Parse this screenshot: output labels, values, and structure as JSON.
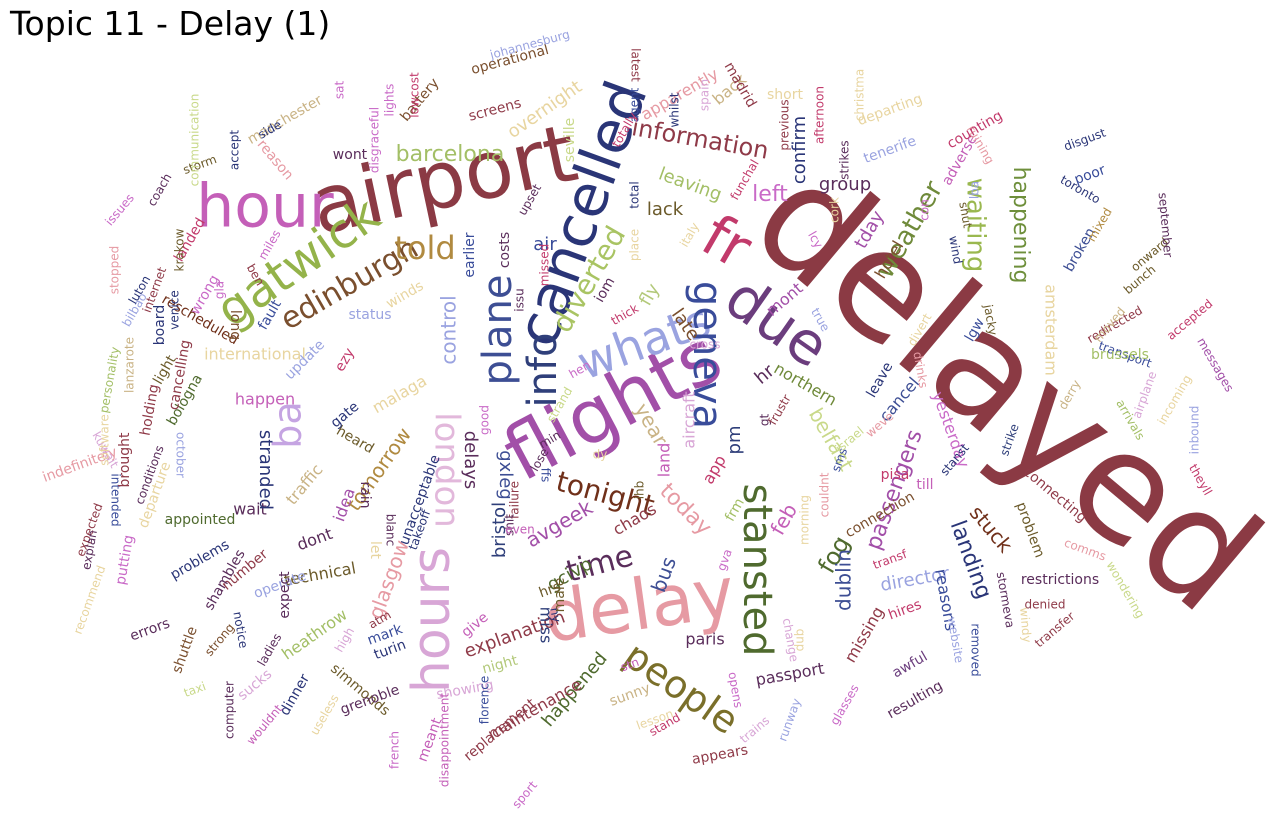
{
  "title": "Topic 11 - Delay (1)",
  "words": [
    {
      "text": "delayed",
      "color": "#8b3a44"
    },
    {
      "text": "airport",
      "color": "#8b3a44"
    },
    {
      "text": "flights",
      "color": "#a24fa8"
    },
    {
      "text": "delay",
      "color": "#e69aa3"
    },
    {
      "text": "hour",
      "color": "#c45fb8"
    },
    {
      "text": "cancelled",
      "color": "#2a3577"
    },
    {
      "text": "fr",
      "color": "#c23a6b"
    },
    {
      "text": "due",
      "color": "#6b3d7d"
    },
    {
      "text": "hours",
      "color": "#d8a6d6"
    },
    {
      "text": "gatwick",
      "color": "#94b34a"
    },
    {
      "text": "whats",
      "color": "#9aa3e0"
    },
    {
      "text": "geneva",
      "color": "#394c9a"
    },
    {
      "text": "info",
      "color": "#2f3f7a"
    },
    {
      "text": "plane",
      "color": "#3d4e94"
    },
    {
      "text": "people",
      "color": "#7a6f2a"
    },
    {
      "text": "stansted",
      "color": "#4f6a2e"
    },
    {
      "text": "ba",
      "color": "#c5a4e2"
    },
    {
      "text": "london",
      "color": "#e2b8db"
    },
    {
      "text": "edinburgh",
      "color": "#7a4f2e"
    },
    {
      "text": "told",
      "color": "#b08a40"
    },
    {
      "text": "diverted",
      "color": "#a9c463"
    },
    {
      "text": "time",
      "color": "#5a2d5b"
    },
    {
      "text": "tonight",
      "color": "#70301a"
    },
    {
      "text": "weather",
      "color": "#6f8a3a"
    },
    {
      "text": "waiting",
      "color": "#9ab84f"
    },
    {
      "text": "happening",
      "color": "#6e8f3b"
    },
    {
      "text": "information",
      "color": "#8f3a48"
    },
    {
      "text": "barcelona",
      "color": "#a3bf66"
    },
    {
      "text": "left",
      "color": "#c96ac7"
    },
    {
      "text": "fog",
      "color": "#4f6a2e"
    },
    {
      "text": "feb",
      "color": "#c45fb8"
    },
    {
      "text": "dublin",
      "color": "#3d4e94"
    },
    {
      "text": "landing",
      "color": "#2a3577"
    },
    {
      "text": "stuck",
      "color": "#70301a"
    },
    {
      "text": "passengers",
      "color": "#a24fa8"
    },
    {
      "text": "belfast",
      "color": "#c9d98a"
    },
    {
      "text": "today",
      "color": "#e69aa3"
    },
    {
      "text": "delays",
      "color": "#5a2d5b"
    },
    {
      "text": "control",
      "color": "#9aa3e0"
    },
    {
      "text": "tomorrow",
      "color": "#b08a40"
    },
    {
      "text": "glasgow",
      "color": "#e69aa3"
    },
    {
      "text": "bus",
      "color": "#3d4e94"
    },
    {
      "text": "year",
      "color": "#c9b385"
    },
    {
      "text": "air",
      "color": "#394c9a"
    },
    {
      "text": "fly",
      "color": "#b3c97a"
    },
    {
      "text": "late",
      "color": "#7a4f2e"
    },
    {
      "text": "lack",
      "color": "#6b5a2a"
    },
    {
      "text": "leaving",
      "color": "#a3bf66"
    },
    {
      "text": "overnight",
      "color": "#e8d5a0"
    },
    {
      "text": "apparently",
      "color": "#e69aa3"
    },
    {
      "text": "back",
      "color": "#c9b385"
    },
    {
      "text": "confirm",
      "color": "#2a3577"
    },
    {
      "text": "group",
      "color": "#5a2d5b"
    },
    {
      "text": "tday",
      "color": "#a24fa8"
    },
    {
      "text": "hotel",
      "color": "#7a4f2e"
    },
    {
      "text": "mont",
      "color": "#a24fa8"
    },
    {
      "text": "hr",
      "color": "#5a2d5b"
    },
    {
      "text": "pm",
      "color": "#2f3f7a"
    },
    {
      "text": "northern",
      "color": "#6f8a3a"
    },
    {
      "text": "cancel",
      "color": "#3d4e94"
    },
    {
      "text": "land",
      "color": "#c45fb8"
    },
    {
      "text": "aircraft",
      "color": "#d8a6d6"
    },
    {
      "text": "app",
      "color": "#c23a6b"
    },
    {
      "text": "avgeek",
      "color": "#a24fa8"
    },
    {
      "text": "gxleg",
      "color": "#3d4e94"
    },
    {
      "text": "bristol",
      "color": "#2f3f7a"
    },
    {
      "text": "chaos",
      "color": "#8f3a48"
    },
    {
      "text": "explanation",
      "color": "#8f3a48"
    },
    {
      "text": "gcivp",
      "color": "#4f6a2e"
    },
    {
      "text": "hrs",
      "color": "#6b5a2a"
    },
    {
      "text": "night",
      "color": "#b3c97a"
    },
    {
      "text": "miss",
      "color": "#2f3f7a"
    },
    {
      "text": "paris",
      "color": "#5a2d5b"
    },
    {
      "text": "happened",
      "color": "#4f6a2e"
    },
    {
      "text": "maintenance",
      "color": "#8f3a48"
    },
    {
      "text": "showing",
      "color": "#d8a6d6"
    },
    {
      "text": "passport",
      "color": "#5a2d5b"
    },
    {
      "text": "missing",
      "color": "#8f3a48"
    },
    {
      "text": "awful",
      "color": "#6b3d7d"
    },
    {
      "text": "director",
      "color": "#9aa3e0"
    },
    {
      "text": "reasons",
      "color": "#394c9a"
    },
    {
      "text": "heathrow",
      "color": "#a3bf66"
    },
    {
      "text": "simmonds",
      "color": "#6b5a2a"
    },
    {
      "text": "technical",
      "color": "#6b5a2a"
    },
    {
      "text": "dont",
      "color": "#5a2d5b"
    },
    {
      "text": "idea",
      "color": "#a24fa8"
    },
    {
      "text": "traffic",
      "color": "#c9b385"
    },
    {
      "text": "wait",
      "color": "#5a2d5b"
    },
    {
      "text": "stranded",
      "color": "#2a3577"
    },
    {
      "text": "happen",
      "color": "#c45fb8"
    },
    {
      "text": "international",
      "color": "#e8d5a0"
    },
    {
      "text": "update",
      "color": "#9aa3e0"
    },
    {
      "text": "malaga",
      "color": "#e8d5a0"
    },
    {
      "text": "ezy",
      "color": "#c23a6b"
    },
    {
      "text": "status",
      "color": "#9aa3e0"
    },
    {
      "text": "winds",
      "color": "#e8d5a0"
    },
    {
      "text": "fault",
      "color": "#394c9a"
    },
    {
      "text": "wrong",
      "color": "#c96ac7"
    },
    {
      "text": "rescheduled",
      "color": "#70301a"
    },
    {
      "text": "long",
      "color": "#7a4f2e"
    },
    {
      "text": "landed",
      "color": "#c23a6b"
    },
    {
      "text": "manchester",
      "color": "#c9b385"
    },
    {
      "text": "reason",
      "color": "#e69aa3"
    },
    {
      "text": "wont",
      "color": "#5a2d5b"
    },
    {
      "text": "battery",
      "color": "#7a4f2e"
    },
    {
      "text": "screens",
      "color": "#8f3a48"
    },
    {
      "text": "operational",
      "color": "#7a4f2e"
    },
    {
      "text": "johannesburg",
      "color": "#9aa3e0"
    },
    {
      "text": "disgust",
      "color": "#2a3577"
    },
    {
      "text": "toronto",
      "color": "#2a3577"
    },
    {
      "text": "poor",
      "color": "#394c9a"
    },
    {
      "text": "broken",
      "color": "#3d4e94"
    },
    {
      "text": "mixed",
      "color": "#b08a40"
    },
    {
      "text": "onward",
      "color": "#6b5a2a"
    },
    {
      "text": "september",
      "color": "#5a2d5b"
    },
    {
      "text": "bunch",
      "color": "#6b5a2a"
    },
    {
      "text": "accepted",
      "color": "#c23a6b"
    },
    {
      "text": "redirected",
      "color": "#8f3a48"
    },
    {
      "text": "transport",
      "color": "#394c9a"
    },
    {
      "text": "moved",
      "color": "#c9b385"
    },
    {
      "text": "amsterdam",
      "color": "#e8d5a0"
    },
    {
      "text": "brussels",
      "color": "#a3bf66"
    },
    {
      "text": "derry",
      "color": "#c9b385"
    },
    {
      "text": "messages",
      "color": "#a24fa8"
    },
    {
      "text": "incoming",
      "color": "#e8d5a0"
    },
    {
      "text": "inbound",
      "color": "#9aa3e0"
    },
    {
      "text": "arrivals",
      "color": "#a3bf66"
    },
    {
      "text": "airplane",
      "color": "#d8a6d6"
    },
    {
      "text": "theyll",
      "color": "#c23a6b"
    },
    {
      "text": "connecting",
      "color": "#8f3a48"
    },
    {
      "text": "problem",
      "color": "#6b5a2a"
    },
    {
      "text": "yesterday",
      "color": "#c96ac7"
    },
    {
      "text": "stanst",
      "color": "#2a3577"
    },
    {
      "text": "strike",
      "color": "#2f3f7a"
    },
    {
      "text": "comms",
      "color": "#e69aa3"
    },
    {
      "text": "wondering",
      "color": "#c9d98a"
    },
    {
      "text": "restrictions",
      "color": "#5a2d5b"
    },
    {
      "text": "denied",
      "color": "#8f3a48"
    },
    {
      "text": "transfer",
      "color": "#8f3a48"
    },
    {
      "text": "windy",
      "color": "#e8d5a0"
    },
    {
      "text": "stormeva",
      "color": "#5a2d5b"
    },
    {
      "text": "removed",
      "color": "#394c9a"
    },
    {
      "text": "website",
      "color": "#9aa3e0"
    },
    {
      "text": "hires",
      "color": "#c23a6b"
    },
    {
      "text": "resulting",
      "color": "#5a2d5b"
    },
    {
      "text": "transf",
      "color": "#c23a6b"
    },
    {
      "text": "glasses",
      "color": "#c96ac7"
    },
    {
      "text": "pisa",
      "color": "#c23a6b"
    },
    {
      "text": "till",
      "color": "#c45fb8"
    },
    {
      "text": "connection",
      "color": "#7a4f2e"
    },
    {
      "text": "couldnt",
      "color": "#e69aa3"
    },
    {
      "text": "morning",
      "color": "#e8d5a0"
    },
    {
      "text": "change",
      "color": "#d8a6d6"
    },
    {
      "text": "dub",
      "color": "#e8d5a0"
    },
    {
      "text": "runway",
      "color": "#9aa3e0"
    },
    {
      "text": "trains",
      "color": "#d8a6d6"
    },
    {
      "text": "opens",
      "color": "#c96ac7"
    },
    {
      "text": "gva",
      "color": "#c96ac7"
    },
    {
      "text": "frm",
      "color": "#a3bf66"
    },
    {
      "text": "gt",
      "color": "#5a2d5b"
    },
    {
      "text": "frustr",
      "color": "#8f3a48"
    },
    {
      "text": "sms",
      "color": "#394c9a"
    },
    {
      "text": "israel",
      "color": "#c9d98a"
    },
    {
      "text": "weve",
      "color": "#e69aa3"
    },
    {
      "text": "leave",
      "color": "#2a3577"
    },
    {
      "text": "drinks",
      "color": "#e69aa3"
    },
    {
      "text": "divert",
      "color": "#e8d5a0"
    },
    {
      "text": "lgw",
      "color": "#394c9a"
    },
    {
      "text": "jacky",
      "color": "#6b5a2a"
    },
    {
      "text": "wind",
      "color": "#2a3577"
    },
    {
      "text": "shut",
      "color": "#6b5a2a"
    },
    {
      "text": "lba",
      "color": "#9aa3e0"
    },
    {
      "text": "con",
      "color": "#c96ac7"
    },
    {
      "text": "adverse",
      "color": "#c45fb8"
    },
    {
      "text": "ruining",
      "color": "#e69aa3"
    },
    {
      "text": "counting",
      "color": "#c23a6b"
    },
    {
      "text": "tenerife",
      "color": "#9aa3e0"
    },
    {
      "text": "departing",
      "color": "#e8d5a0"
    },
    {
      "text": "christma",
      "color": "#e8d5a0"
    },
    {
      "text": "strikes",
      "color": "#5a2d5b"
    },
    {
      "text": "afternoon",
      "color": "#c23a6b"
    },
    {
      "text": "previous",
      "color": "#8f3a48"
    },
    {
      "text": "short",
      "color": "#e8d5a0"
    },
    {
      "text": "madrid",
      "color": "#8f3a48"
    },
    {
      "text": "funchal",
      "color": "#c23a6b"
    },
    {
      "text": "cork",
      "color": "#e8d5a0"
    },
    {
      "text": "lcy",
      "color": "#c96ac7"
    },
    {
      "text": "true",
      "color": "#9aa3e0"
    },
    {
      "text": "spain",
      "color": "#d8a6d6"
    },
    {
      "text": "whilst",
      "color": "#2a3577"
    },
    {
      "text": "agent",
      "color": "#394c9a"
    },
    {
      "text": "totally",
      "color": "#c23a6b"
    },
    {
      "text": "latest",
      "color": "#8f3a48"
    },
    {
      "text": "seville",
      "color": "#c9d98a"
    },
    {
      "text": "total",
      "color": "#2a3577"
    },
    {
      "text": "place",
      "color": "#e8d5a0"
    },
    {
      "text": "italy",
      "color": "#e8d5a0"
    },
    {
      "text": "upset",
      "color": "#5a2d5b"
    },
    {
      "text": "costs",
      "color": "#5a2d5b"
    },
    {
      "text": "earlier",
      "color": "#394c9a"
    },
    {
      "text": "missed",
      "color": "#c23a6b"
    },
    {
      "text": "issu",
      "color": "#5a2d5b"
    },
    {
      "text": "iom",
      "color": "#5a2d5b"
    },
    {
      "text": "thick",
      "color": "#c23a6b"
    },
    {
      "text": "cross",
      "color": "#d8a6d6"
    },
    {
      "text": "hen",
      "color": "#c96ac7"
    },
    {
      "text": "strand",
      "color": "#c9d98a"
    },
    {
      "text": "dy",
      "color": "#e8d5a0"
    },
    {
      "text": "ihb",
      "color": "#6b5a2a"
    },
    {
      "text": "min",
      "color": "#5a2d5b"
    },
    {
      "text": "lose",
      "color": "#5a2d5b"
    },
    {
      "text": "good",
      "color": "#c96ac7"
    },
    {
      "text": "ffs",
      "color": "#394c9a"
    },
    {
      "text": "failure",
      "color": "#8f3a48"
    },
    {
      "text": "shit",
      "color": "#5a2d5b"
    },
    {
      "text": "even",
      "color": "#c45fb8"
    },
    {
      "text": "give",
      "color": "#c45fb8"
    },
    {
      "text": "ny",
      "color": "#2a3577"
    },
    {
      "text": "male",
      "color": "#6b5a2a"
    },
    {
      "text": "stn",
      "color": "#c45fb8"
    },
    {
      "text": "sunny",
      "color": "#c9b385"
    },
    {
      "text": "lesson",
      "color": "#e8d5a0"
    },
    {
      "text": "stand",
      "color": "#c23a6b"
    },
    {
      "text": "replacement",
      "color": "#8f3a48"
    },
    {
      "text": "appears",
      "color": "#8f3a48"
    },
    {
      "text": "sport",
      "color": "#c96ac7"
    },
    {
      "text": "florence",
      "color": "#394c9a"
    },
    {
      "text": "disappointment",
      "color": "#c45fb8"
    },
    {
      "text": "meant",
      "color": "#c45fb8"
    },
    {
      "text": "french",
      "color": "#c96ac7"
    },
    {
      "text": "grenoble",
      "color": "#5a2d5b"
    },
    {
      "text": "wouldnt",
      "color": "#c45fb8"
    },
    {
      "text": "useless",
      "color": "#e8d5a0"
    },
    {
      "text": "turin",
      "color": "#2a3577"
    },
    {
      "text": "mark",
      "color": "#394c9a"
    },
    {
      "text": "atm",
      "color": "#8f3a48"
    },
    {
      "text": "high",
      "color": "#d8a6d6"
    },
    {
      "text": "takeoff",
      "color": "#2a3577"
    },
    {
      "text": "dinner",
      "color": "#2a3577"
    },
    {
      "text": "sucks",
      "color": "#d8a6d6"
    },
    {
      "text": "ladies",
      "color": "#5a2d5b"
    },
    {
      "text": "strong",
      "color": "#7a4f2e"
    },
    {
      "text": "computer",
      "color": "#5a2d5b"
    },
    {
      "text": "shuttle",
      "color": "#7a4f2e"
    },
    {
      "text": "errors",
      "color": "#5a2d5b"
    },
    {
      "text": "taxi",
      "color": "#c9d98a"
    },
    {
      "text": "notice",
      "color": "#2a3577"
    },
    {
      "text": "operate",
      "color": "#9aa3e0"
    },
    {
      "text": "number",
      "color": "#8f3a48"
    },
    {
      "text": "expect",
      "color": "#5a2d5b"
    },
    {
      "text": "let",
      "color": "#e8d5a0"
    },
    {
      "text": "blanc",
      "color": "#5a2d5b"
    },
    {
      "text": "rain",
      "color": "#5a2d5b"
    },
    {
      "text": "heard",
      "color": "#6b5a2a"
    },
    {
      "text": "gate",
      "color": "#2a3577"
    },
    {
      "text": "unacceptable",
      "color": "#2a3577"
    },
    {
      "text": "shambles",
      "color": "#5a2d5b"
    },
    {
      "text": "problems",
      "color": "#2a3577"
    },
    {
      "text": "appointed",
      "color": "#4f6a2e"
    },
    {
      "text": "departure",
      "color": "#e8d5a0"
    },
    {
      "text": "putting",
      "color": "#c96ac7"
    },
    {
      "text": "recommend",
      "color": "#e8d5a0"
    },
    {
      "text": "expected",
      "color": "#8f3a48"
    },
    {
      "text": "explan",
      "color": "#5a2d5b"
    },
    {
      "text": "intended",
      "color": "#394c9a"
    },
    {
      "text": "conditions",
      "color": "#5a2d5b"
    },
    {
      "text": "october",
      "color": "#9aa3e0"
    },
    {
      "text": "indefinitely",
      "color": "#e69aa3"
    },
    {
      "text": "kuwait",
      "color": "#d8a6d6"
    },
    {
      "text": "software",
      "color": "#e8d5a0"
    },
    {
      "text": "brought",
      "color": "#8f3a48"
    },
    {
      "text": "holding",
      "color": "#8f3a48"
    },
    {
      "text": "bologna",
      "color": "#4f6a2e"
    },
    {
      "text": "cancelling",
      "color": "#8f3a48"
    },
    {
      "text": "personality",
      "color": "#a3bf66"
    },
    {
      "text": "board",
      "color": "#2a3577"
    },
    {
      "text": "lanzarote",
      "color": "#c9b385"
    },
    {
      "text": "light",
      "color": "#6b5a2a"
    },
    {
      "text": "venice",
      "color": "#2a3577"
    },
    {
      "text": "internet",
      "color": "#8f3a48"
    },
    {
      "text": "stopped",
      "color": "#e69aa3"
    },
    {
      "text": "bilbao",
      "color": "#9aa3e0"
    },
    {
      "text": "luton",
      "color": "#2a3577"
    },
    {
      "text": "krakow",
      "color": "#6b5a2a"
    },
    {
      "text": "issues",
      "color": "#c96ac7"
    },
    {
      "text": "coach",
      "color": "#5a2d5b"
    },
    {
      "text": "storm",
      "color": "#6b5a2a"
    },
    {
      "text": "communication",
      "color": "#c9d98a"
    },
    {
      "text": "accept",
      "color": "#2a3577"
    },
    {
      "text": "side",
      "color": "#2a3577"
    },
    {
      "text": "disgraceful",
      "color": "#c96ac7"
    },
    {
      "text": "lights",
      "color": "#c96ac7"
    },
    {
      "text": "lowcost",
      "color": "#c23a6b"
    },
    {
      "text": "sat",
      "color": "#c96ac7"
    },
    {
      "text": "miles",
      "color": "#c96ac7"
    },
    {
      "text": "gla",
      "color": "#c96ac7"
    },
    {
      "text": "ben",
      "color": "#8f3a48"
    }
  ]
}
